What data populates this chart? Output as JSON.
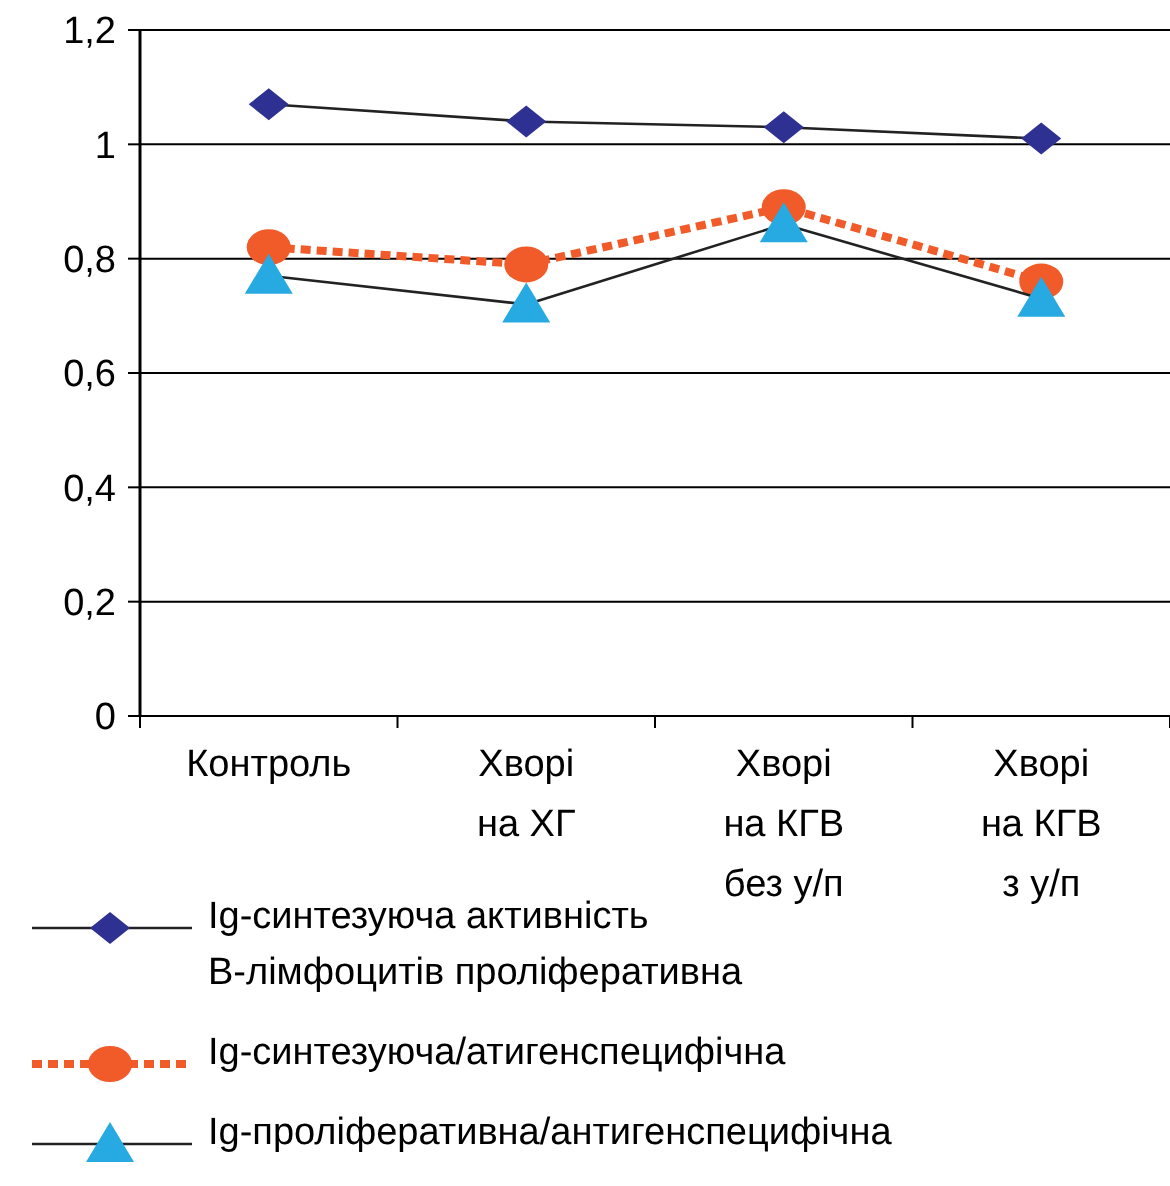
{
  "chart_data": {
    "type": "line",
    "categories": [
      "Контроль",
      "Хворі\nна ХГ",
      "Хворі\nна КГВ\nбез у/п",
      "Хворі\nна КГВ\nз у/п"
    ],
    "series": [
      {
        "name": "Ig-синтезуюча активність\nB-лімфоцитів проліферативна",
        "color": "#2e3192",
        "marker": "diamond",
        "line_style": "solid",
        "values": [
          1.07,
          1.04,
          1.03,
          1.01
        ]
      },
      {
        "name": "Ig-синтезуюча/атигенспецифічна",
        "color": "#f15a29",
        "marker": "circle",
        "line_style": "dashed",
        "values": [
          0.82,
          0.79,
          0.89,
          0.76
        ]
      },
      {
        "name": "Ig-проліферативна/антигенспецифічна",
        "color": "#27aae1",
        "marker": "triangle",
        "line_style": "solid",
        "values": [
          0.77,
          0.72,
          0.86,
          0.73
        ]
      }
    ],
    "ylim": [
      0,
      1.2
    ],
    "yticks": [
      {
        "value": 0,
        "label": "0"
      },
      {
        "value": 0.2,
        "label": "0,2"
      },
      {
        "value": 0.4,
        "label": "0,4"
      },
      {
        "value": 0.6,
        "label": "0,6"
      },
      {
        "value": 0.8,
        "label": "0,8"
      },
      {
        "value": 1,
        "label": "1"
      },
      {
        "value": 1.2,
        "label": "1,2"
      }
    ],
    "grid": "y",
    "legend": "bottom"
  }
}
